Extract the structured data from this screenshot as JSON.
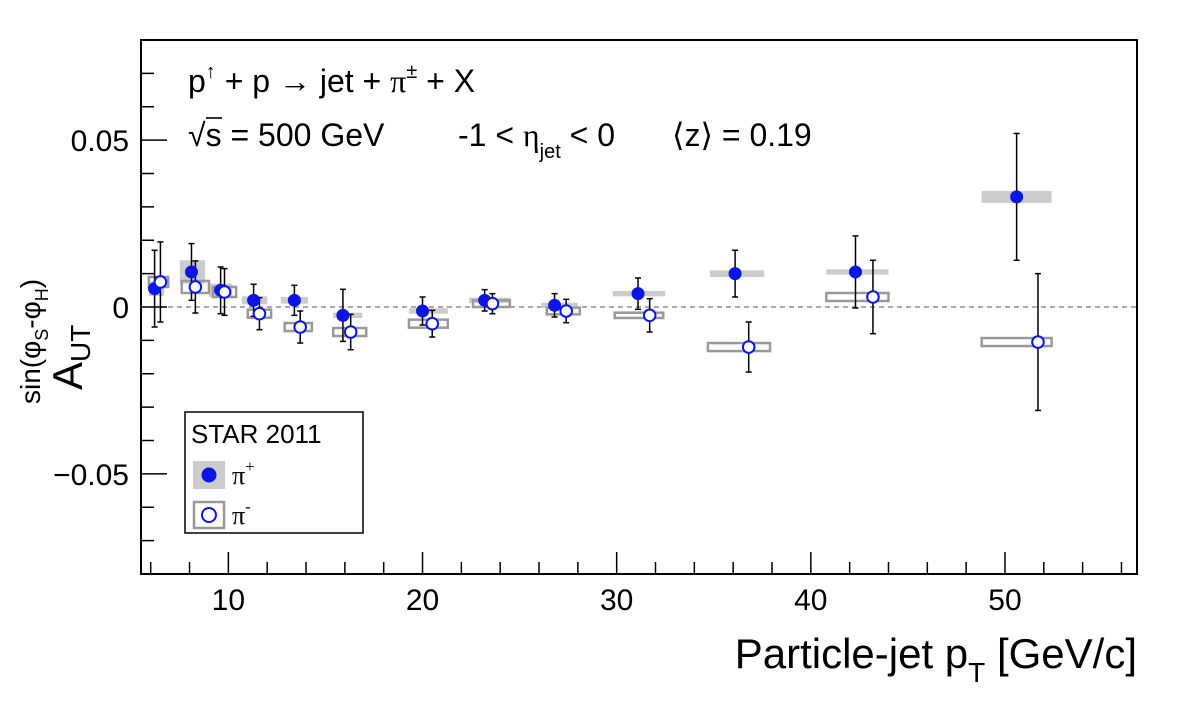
{
  "chart_data": {
    "type": "scatter",
    "xlabel_main": "Particle-jet p",
    "xlabel_sub": "T",
    "xlabel_unit": "[GeV/c]",
    "ylabel_main": "A",
    "ylabel_sub": "UT",
    "ylabel_sup": "sin(φ",
    "ylabel_sup_s": "S",
    "ylabel_sup_mid": "-φ",
    "ylabel_sup_h": "H",
    "ylabel_sup_end": ")",
    "xlim": [
      5.5,
      56.8
    ],
    "ylim": [
      -0.08,
      0.08
    ],
    "x_ticks": [
      10,
      20,
      30,
      40,
      50
    ],
    "x_tick_labels": [
      "10",
      "20",
      "30",
      "40",
      "50"
    ],
    "y_ticks": [
      -0.05,
      0,
      0.05
    ],
    "y_tick_labels": [
      "−0.05",
      "0",
      "0.05"
    ],
    "zero_line": true,
    "annotation": {
      "reaction_p1": "p",
      "reaction_arrow": "↑",
      "reaction_mid": " + p → jet + ",
      "reaction_pi": "π",
      "reaction_pm": "±",
      "reaction_end": " + X",
      "energy_sqrt": "√",
      "energy_s": "s = 500 GeV",
      "eta_range_pre": "-1 < ",
      "eta_symbol": "η",
      "eta_sub": "jet",
      "eta_range_post": " < 0",
      "z_label": "⟨z⟩ = 0.19"
    },
    "legend": {
      "title": "STAR 2011",
      "position": "bottom-left",
      "entries": [
        {
          "label": "π",
          "sup": "+"
        },
        {
          "label": "π",
          "sup": "-"
        }
      ]
    },
    "series": [
      {
        "name": "π+",
        "marker": "filled-circle",
        "x": [
          6.2,
          8.1,
          9.6,
          11.3,
          13.4,
          15.9,
          20.0,
          23.2,
          26.8,
          31.1,
          36.1,
          42.3,
          50.6
        ],
        "y": [
          0.0055,
          0.0105,
          0.005,
          0.002,
          0.002,
          -0.0025,
          -0.0012,
          0.002,
          0.0005,
          0.004,
          0.01,
          0.0105,
          0.033
        ],
        "yerr": [
          0.0115,
          0.0085,
          0.007,
          0.0048,
          0.0045,
          0.0078,
          0.0042,
          0.0032,
          0.0035,
          0.0047,
          0.007,
          0.0108,
          0.019
        ],
        "syst_x": [
          [
            5.9,
            6.7
          ],
          [
            7.5,
            8.8
          ],
          [
            9.0,
            10.2
          ],
          [
            10.7,
            12.0
          ],
          [
            12.7,
            14.1
          ],
          [
            15.4,
            16.9
          ],
          [
            19.3,
            21.3
          ],
          [
            22.4,
            24.5
          ],
          [
            26.1,
            28.0
          ],
          [
            29.8,
            32.5
          ],
          [
            34.8,
            37.6
          ],
          [
            40.8,
            44.0
          ],
          [
            48.8,
            52.4
          ]
        ],
        "syst_y": [
          0.0022,
          0.0035,
          0.002,
          0.0012,
          0.001,
          0.0008,
          0.0008,
          0.0008,
          0.0008,
          0.0008,
          0.001,
          0.0008,
          0.0018
        ]
      },
      {
        "name": "π−",
        "marker": "open-circle",
        "x": [
          6.5,
          8.3,
          9.8,
          11.6,
          13.7,
          16.3,
          20.5,
          23.6,
          27.4,
          31.7,
          36.8,
          43.2,
          51.7
        ],
        "y": [
          0.0075,
          0.006,
          0.0045,
          -0.002,
          -0.006,
          -0.0075,
          -0.005,
          0.001,
          -0.0012,
          -0.0025,
          -0.012,
          0.003,
          -0.0105
        ],
        "yerr": [
          0.012,
          0.0078,
          0.007,
          0.0048,
          0.0048,
          0.0053,
          0.004,
          0.003,
          0.0035,
          0.005,
          0.0075,
          0.011,
          0.0205
        ],
        "syst_x": [
          [
            5.9,
            6.9
          ],
          [
            7.6,
            9.0
          ],
          [
            9.2,
            10.4
          ],
          [
            11.0,
            12.2
          ],
          [
            12.9,
            14.3
          ],
          [
            15.4,
            17.1
          ],
          [
            19.3,
            21.3
          ],
          [
            22.6,
            24.5
          ],
          [
            26.4,
            28.1
          ],
          [
            29.9,
            32.4
          ],
          [
            34.7,
            37.9
          ],
          [
            40.8,
            44.0
          ],
          [
            48.8,
            52.4
          ]
        ],
        "syst_y": [
          0.0015,
          0.0018,
          0.0015,
          0.0012,
          0.0012,
          0.0012,
          0.0012,
          0.001,
          0.001,
          0.0008,
          0.0012,
          0.0012,
          0.0012
        ]
      }
    ]
  }
}
